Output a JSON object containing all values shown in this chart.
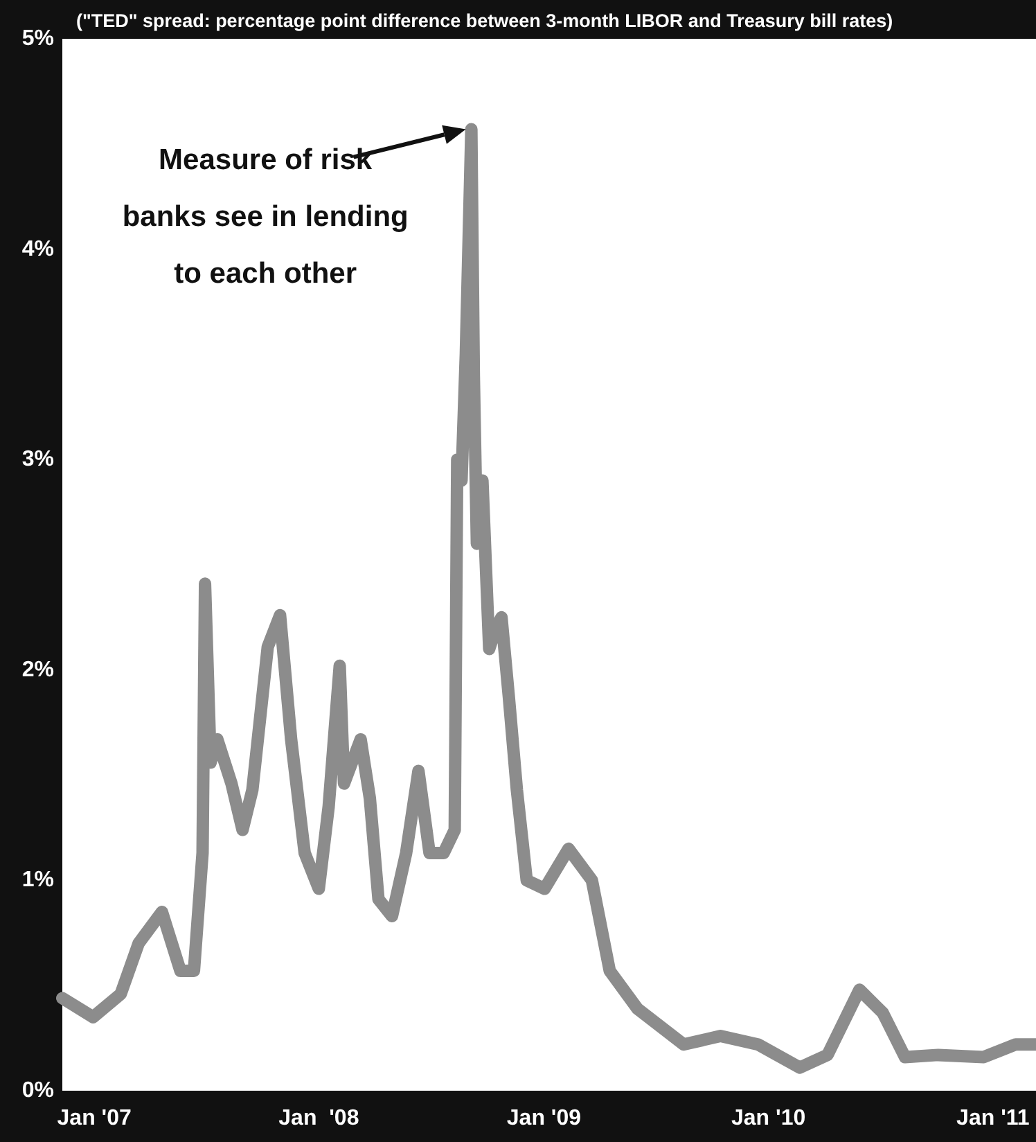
{
  "chart_data": {
    "type": "line",
    "title": "(\"TED\" spread: percentage point difference between 3-month LIBOR and Treasury bill rates)",
    "x": [
      "2006-11-10",
      "2006-12-30",
      "2007-02-13",
      "2007-03-14",
      "2007-04-21",
      "2007-05-21",
      "2007-06-12",
      "2007-06-26",
      "2007-06-30",
      "2007-07-09",
      "2007-07-20",
      "2007-08-12",
      "2007-08-30",
      "2007-09-15",
      "2007-10-10",
      "2007-10-30",
      "2007-11-17",
      "2007-12-09",
      "2008-01-01",
      "2008-01-17",
      "2008-02-04",
      "2008-02-11",
      "2008-03-09",
      "2008-03-24",
      "2008-04-07",
      "2008-04-29",
      "2008-05-22",
      "2008-06-11",
      "2008-06-29",
      "2008-07-22",
      "2008-08-09",
      "2008-08-13",
      "2008-08-20",
      "2008-08-27",
      "2008-09-05",
      "2008-09-09",
      "2008-09-14",
      "2008-09-23",
      "2008-10-04",
      "2008-10-15",
      "2008-10-24",
      "2008-11-05",
      "2008-11-18",
      "2008-12-04",
      "2009-01-02",
      "2009-02-10",
      "2009-03-20",
      "2009-04-18",
      "2009-06-02",
      "2009-08-16",
      "2009-10-15",
      "2009-12-15",
      "2010-02-21",
      "2010-04-07",
      "2010-05-29",
      "2010-07-06",
      "2010-08-11",
      "2010-10-04",
      "2010-12-17",
      "2011-02-07",
      "2011-03-11"
    ],
    "values": [
      0.44,
      0.35,
      0.46,
      0.7,
      0.85,
      0.57,
      0.57,
      1.13,
      2.41,
      1.56,
      1.67,
      1.46,
      1.24,
      1.43,
      2.11,
      2.26,
      1.67,
      1.13,
      0.96,
      1.35,
      2.02,
      1.46,
      1.67,
      1.39,
      0.91,
      0.83,
      1.13,
      1.52,
      1.13,
      1.13,
      1.24,
      3.0,
      2.9,
      3.5,
      4.57,
      3.4,
      2.6,
      2.9,
      2.1,
      2.2,
      2.25,
      1.87,
      1.43,
      1.0,
      0.96,
      1.15,
      1.0,
      0.57,
      0.39,
      0.22,
      0.26,
      0.22,
      0.11,
      0.17,
      0.48,
      0.37,
      0.16,
      0.17,
      0.16,
      0.22,
      0.22
    ],
    "color": "#8c8c8c",
    "xlim": [
      "2006-11-10",
      "2011-03-12"
    ],
    "xticks": [
      {
        "value": "2007-01-01",
        "label": "Jan '07"
      },
      {
        "value": "2008-01-01",
        "label": "Jan  '08"
      },
      {
        "value": "2009-01-01",
        "label": "Jan '09"
      },
      {
        "value": "2010-01-01",
        "label": "Jan '10"
      },
      {
        "value": "2011-01-01",
        "label": "Jan '11"
      }
    ],
    "ylim": [
      0,
      5
    ],
    "yticks": [
      {
        "value": 0,
        "label": "0%"
      },
      {
        "value": 1,
        "label": "1%"
      },
      {
        "value": 2,
        "label": "2%"
      },
      {
        "value": 3,
        "label": "3%"
      },
      {
        "value": 4,
        "label": "4%"
      },
      {
        "value": 5,
        "label": "5%"
      }
    ],
    "annotations": [
      {
        "text": "Measure of risk\nbanks see in lending\nto each other",
        "x": "2008-09-05",
        "y": 4.57
      }
    ]
  }
}
